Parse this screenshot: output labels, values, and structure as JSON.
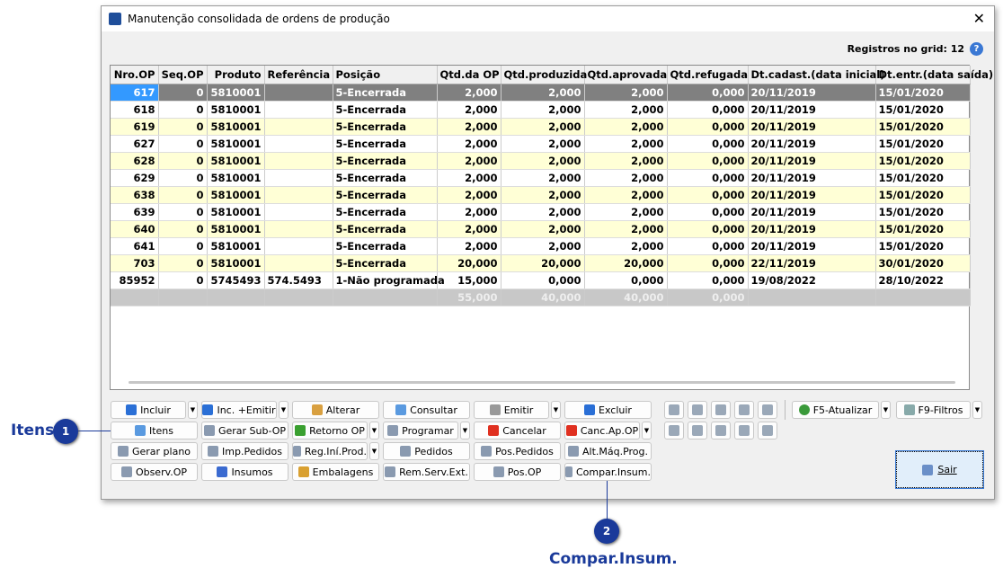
{
  "window": {
    "title": "Manutenção consolidada de ordens de produção",
    "registros_label": "Registros no grid: 12"
  },
  "grid": {
    "columns": [
      "Nro.OP",
      "Seq.OP",
      "Produto",
      "Referência",
      "Posição",
      "Qtd.da OP",
      "Qtd.produzida",
      "Qtd.aprovada",
      "Qtd.refugada",
      "Dt.cadast.(data inicial)",
      "Dt.entr.(data saída)"
    ],
    "rows": [
      [
        "617",
        "0",
        "5810001",
        "",
        "5-Encerrada",
        "2,000",
        "2,000",
        "2,000",
        "0,000",
        "20/11/2019",
        "15/01/2020"
      ],
      [
        "618",
        "0",
        "5810001",
        "",
        "5-Encerrada",
        "2,000",
        "2,000",
        "2,000",
        "0,000",
        "20/11/2019",
        "15/01/2020"
      ],
      [
        "619",
        "0",
        "5810001",
        "",
        "5-Encerrada",
        "2,000",
        "2,000",
        "2,000",
        "0,000",
        "20/11/2019",
        "15/01/2020"
      ],
      [
        "627",
        "0",
        "5810001",
        "",
        "5-Encerrada",
        "2,000",
        "2,000",
        "2,000",
        "0,000",
        "20/11/2019",
        "15/01/2020"
      ],
      [
        "628",
        "0",
        "5810001",
        "",
        "5-Encerrada",
        "2,000",
        "2,000",
        "2,000",
        "0,000",
        "20/11/2019",
        "15/01/2020"
      ],
      [
        "629",
        "0",
        "5810001",
        "",
        "5-Encerrada",
        "2,000",
        "2,000",
        "2,000",
        "0,000",
        "20/11/2019",
        "15/01/2020"
      ],
      [
        "638",
        "0",
        "5810001",
        "",
        "5-Encerrada",
        "2,000",
        "2,000",
        "2,000",
        "0,000",
        "20/11/2019",
        "15/01/2020"
      ],
      [
        "639",
        "0",
        "5810001",
        "",
        "5-Encerrada",
        "2,000",
        "2,000",
        "2,000",
        "0,000",
        "20/11/2019",
        "15/01/2020"
      ],
      [
        "640",
        "0",
        "5810001",
        "",
        "5-Encerrada",
        "2,000",
        "2,000",
        "2,000",
        "0,000",
        "20/11/2019",
        "15/01/2020"
      ],
      [
        "641",
        "0",
        "5810001",
        "",
        "5-Encerrada",
        "2,000",
        "2,000",
        "2,000",
        "0,000",
        "20/11/2019",
        "15/01/2020"
      ],
      [
        "703",
        "0",
        "5810001",
        "",
        "5-Encerrada",
        "20,000",
        "20,000",
        "20,000",
        "0,000",
        "22/11/2019",
        "30/01/2020"
      ],
      [
        "85952",
        "0",
        "5745493",
        "574.5493",
        "1-Não programada",
        "15,000",
        "0,000",
        "0,000",
        "0,000",
        "19/08/2022",
        "28/10/2022"
      ]
    ],
    "totals": [
      "",
      "",
      "",
      "",
      "",
      "55,000",
      "40,000",
      "40,000",
      "0,000",
      "",
      ""
    ]
  },
  "buttons": [
    [
      {
        "label": "Incluir",
        "icon": "plus-icon",
        "dd": true
      },
      {
        "label": "Inc. +Emitir",
        "icon": "plus-icon",
        "dd": true
      },
      {
        "label": "Alterar",
        "icon": "edit-icon"
      },
      {
        "label": "Consultar",
        "icon": "magnifier-icon"
      },
      {
        "label": "Emitir",
        "icon": "printer-icon",
        "dd": true
      },
      {
        "label": "Excluir",
        "icon": "minus-icon"
      }
    ],
    [
      {
        "label": "Itens",
        "icon": "magnifier-icon"
      },
      {
        "label": "Gerar Sub-OP",
        "icon": "tree-icon"
      },
      {
        "label": "Retorno OP",
        "icon": "play-icon",
        "dd": true
      },
      {
        "label": "Programar",
        "icon": "document-icon",
        "dd": true
      },
      {
        "label": "Cancelar",
        "icon": "x-icon"
      },
      {
        "label": "Canc.Ap.OP",
        "icon": "x-icon",
        "dd": true
      }
    ],
    [
      {
        "label": "Gerar plano",
        "icon": "truck-icon"
      },
      {
        "label": "Imp.Pedidos",
        "icon": "import-icon"
      },
      {
        "label": "Reg.Iní.Prod.",
        "icon": "gears-icon",
        "dd": true
      },
      {
        "label": "Pedidos",
        "icon": "clipboard-icon"
      },
      {
        "label": "Pos.Pedidos",
        "icon": "search-doc-icon"
      },
      {
        "label": "Alt.Máq.Prog.",
        "icon": "joystick-icon"
      }
    ],
    [
      {
        "label": "Observ.OP",
        "icon": "note-icon"
      },
      {
        "label": "Insumos",
        "icon": "blocks-icon"
      },
      {
        "label": "Embalagens",
        "icon": "box-icon"
      },
      {
        "label": "Rem.Serv.Ext.",
        "icon": "send-icon"
      },
      {
        "label": "Pos.OP",
        "icon": "search-icon"
      },
      {
        "label": "Compar.Insum.",
        "icon": "compare-icon"
      }
    ]
  ],
  "tools": {
    "row1": [
      "binoculars-icon",
      "excel-icon",
      "page-icon",
      "chart-icon",
      "sort-icon"
    ],
    "row2": [
      "palette-icon",
      "eraser-icon",
      "gear-icon",
      "download-icon",
      "checklist-icon"
    ]
  },
  "refresh": {
    "label": "F5-Atualizar"
  },
  "filters": {
    "label": "F9-Filtros"
  },
  "exit": {
    "label": "Sair"
  },
  "annotations": [
    {
      "num": "1",
      "label": "Itens"
    },
    {
      "num": "2",
      "label": "Compar.Insum."
    }
  ],
  "colors": {
    "selected": "#808080",
    "selected_key": "#3399ff",
    "alt_row": "#ffffd6",
    "annotation": "#1a3a9a"
  }
}
